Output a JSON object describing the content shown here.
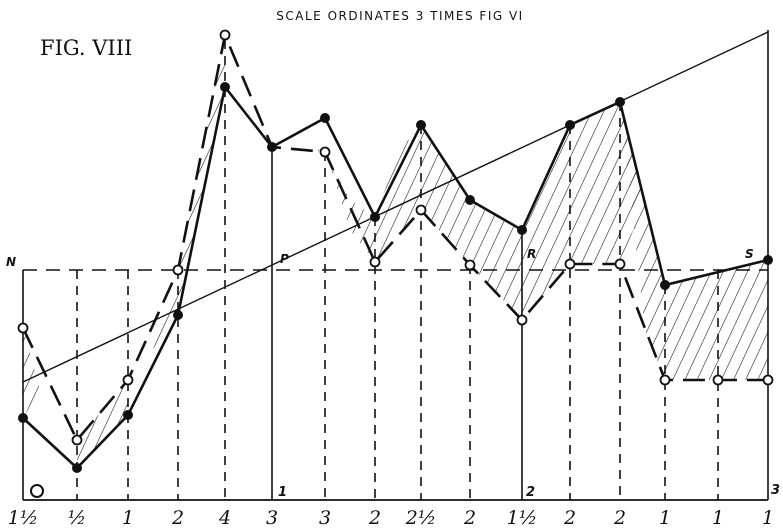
{
  "header": {
    "caption": "SCALE ORDINATES 3 TIMES FIG VI"
  },
  "figure": {
    "label": "FIG. VIII"
  },
  "points": {
    "n": "N",
    "p": "P",
    "r": "R",
    "s": "S",
    "origin": "O"
  },
  "axis_marks": [
    "1",
    "2",
    "3"
  ],
  "bottom_labels": [
    "1½",
    "½",
    "1",
    "2",
    "4",
    "3",
    "3",
    "2",
    "2½",
    "2",
    "1½",
    "2",
    "2",
    "1",
    "1",
    "1"
  ],
  "colors": {
    "ink": "#111111",
    "paper": "#ffffff"
  }
}
